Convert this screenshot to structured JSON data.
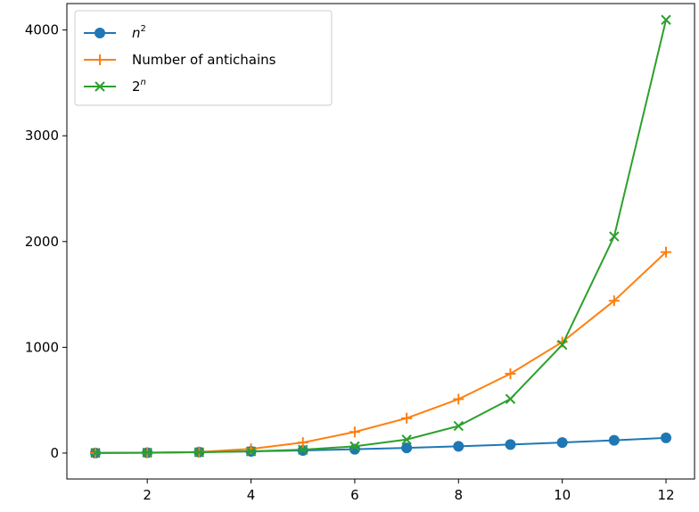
{
  "chart_data": {
    "type": "line",
    "x": [
      1,
      2,
      3,
      4,
      5,
      6,
      7,
      8,
      9,
      10,
      11,
      12
    ],
    "xlim": [
      0.45,
      12.55
    ],
    "ylim": [
      -245,
      4250
    ],
    "x_ticks": [
      2,
      4,
      6,
      8,
      10,
      12
    ],
    "x_tick_labels": [
      "2",
      "4",
      "6",
      "8",
      "10",
      "12"
    ],
    "y_ticks": [
      0,
      1000,
      2000,
      3000,
      4000
    ],
    "y_tick_labels": [
      "0",
      "1000",
      "2000",
      "3000",
      "4000"
    ],
    "grid": false,
    "legend_position": "top-left",
    "series": [
      {
        "name": "n²",
        "legend_base": "n",
        "legend_sup": "2",
        "color": "#1f77b4",
        "marker": "circle",
        "values": [
          1,
          4,
          9,
          16,
          25,
          36,
          49,
          64,
          81,
          100,
          121,
          144
        ]
      },
      {
        "name": "Number of antichains",
        "legend_base": "Number of antichains",
        "legend_sup": "",
        "color": "#ff7f0e",
        "marker": "plus",
        "values": [
          1,
          2,
          10,
          40,
          100,
          200,
          330,
          510,
          750,
          1050,
          1440,
          1900
        ]
      },
      {
        "name": "2ⁿ",
        "legend_base": "2",
        "legend_sup": "n",
        "color": "#2ca02c",
        "marker": "x",
        "values": [
          2,
          4,
          8,
          16,
          32,
          64,
          128,
          256,
          512,
          1024,
          2048,
          4096
        ]
      }
    ]
  }
}
